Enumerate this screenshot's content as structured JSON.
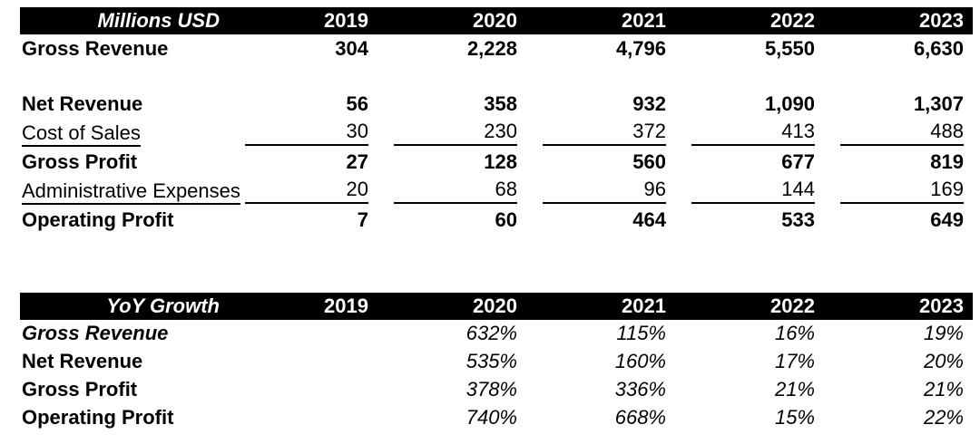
{
  "colors": {
    "header_bg": "#000000",
    "header_text": "#ffffff",
    "body_text": "#000000"
  },
  "income_table": {
    "title": "Millions USD",
    "years": [
      "2019",
      "2020",
      "2021",
      "2022",
      "2023"
    ],
    "rows": [
      {
        "label": "Gross Revenue",
        "style": "bold",
        "values": [
          "304",
          "2,228",
          "4,796",
          "5,550",
          "6,630"
        ]
      },
      {
        "label": "Net Revenue",
        "style": "bold",
        "values": [
          "56",
          "358",
          "932",
          "1,090",
          "1,307"
        ]
      },
      {
        "label": "Cost of Sales",
        "style": "underlined",
        "values": [
          "30",
          "230",
          "372",
          "413",
          "488"
        ]
      },
      {
        "label": "Gross Profit",
        "style": "bold",
        "values": [
          "27",
          "128",
          "560",
          "677",
          "819"
        ]
      },
      {
        "label": "Administrative Expenses",
        "style": "underlined",
        "values": [
          "20",
          "68",
          "96",
          "144",
          "169"
        ]
      },
      {
        "label": "Operating Profit",
        "style": "bold",
        "values": [
          "7",
          "60",
          "464",
          "533",
          "649"
        ]
      }
    ]
  },
  "growth_table": {
    "title": "YoY Growth",
    "years": [
      "2019",
      "2020",
      "2021",
      "2022",
      "2023"
    ],
    "rows": [
      {
        "label": "Gross Revenue",
        "values": [
          "",
          "632%",
          "115%",
          "16%",
          "19%"
        ]
      },
      {
        "label": "Net Revenue",
        "values": [
          "",
          "535%",
          "160%",
          "17%",
          "20%"
        ]
      },
      {
        "label": "Gross Profit",
        "values": [
          "",
          "378%",
          "336%",
          "21%",
          "21%"
        ]
      },
      {
        "label": "Operating Profit",
        "values": [
          "",
          "740%",
          "668%",
          "15%",
          "22%"
        ]
      }
    ]
  },
  "chart_data": [
    {
      "type": "table",
      "title": "Millions USD",
      "columns": [
        "2019",
        "2020",
        "2021",
        "2022",
        "2023"
      ],
      "rows": [
        {
          "name": "Gross Revenue",
          "values": [
            304,
            2228,
            4796,
            5550,
            6630
          ]
        },
        {
          "name": "Net Revenue",
          "values": [
            56,
            358,
            932,
            1090,
            1307
          ]
        },
        {
          "name": "Cost of Sales",
          "values": [
            30,
            230,
            372,
            413,
            488
          ]
        },
        {
          "name": "Gross Profit",
          "values": [
            27,
            128,
            560,
            677,
            819
          ]
        },
        {
          "name": "Administrative Expenses",
          "values": [
            20,
            68,
            96,
            144,
            169
          ]
        },
        {
          "name": "Operating Profit",
          "values": [
            7,
            60,
            464,
            533,
            649
          ]
        }
      ]
    },
    {
      "type": "table",
      "title": "YoY Growth",
      "columns": [
        "2019",
        "2020",
        "2021",
        "2022",
        "2023"
      ],
      "unit": "percent",
      "rows": [
        {
          "name": "Gross Revenue",
          "values": [
            null,
            632,
            115,
            16,
            19
          ]
        },
        {
          "name": "Net Revenue",
          "values": [
            null,
            535,
            160,
            17,
            20
          ]
        },
        {
          "name": "Gross Profit",
          "values": [
            null,
            378,
            336,
            21,
            21
          ]
        },
        {
          "name": "Operating Profit",
          "values": [
            null,
            740,
            668,
            15,
            22
          ]
        }
      ]
    }
  ]
}
